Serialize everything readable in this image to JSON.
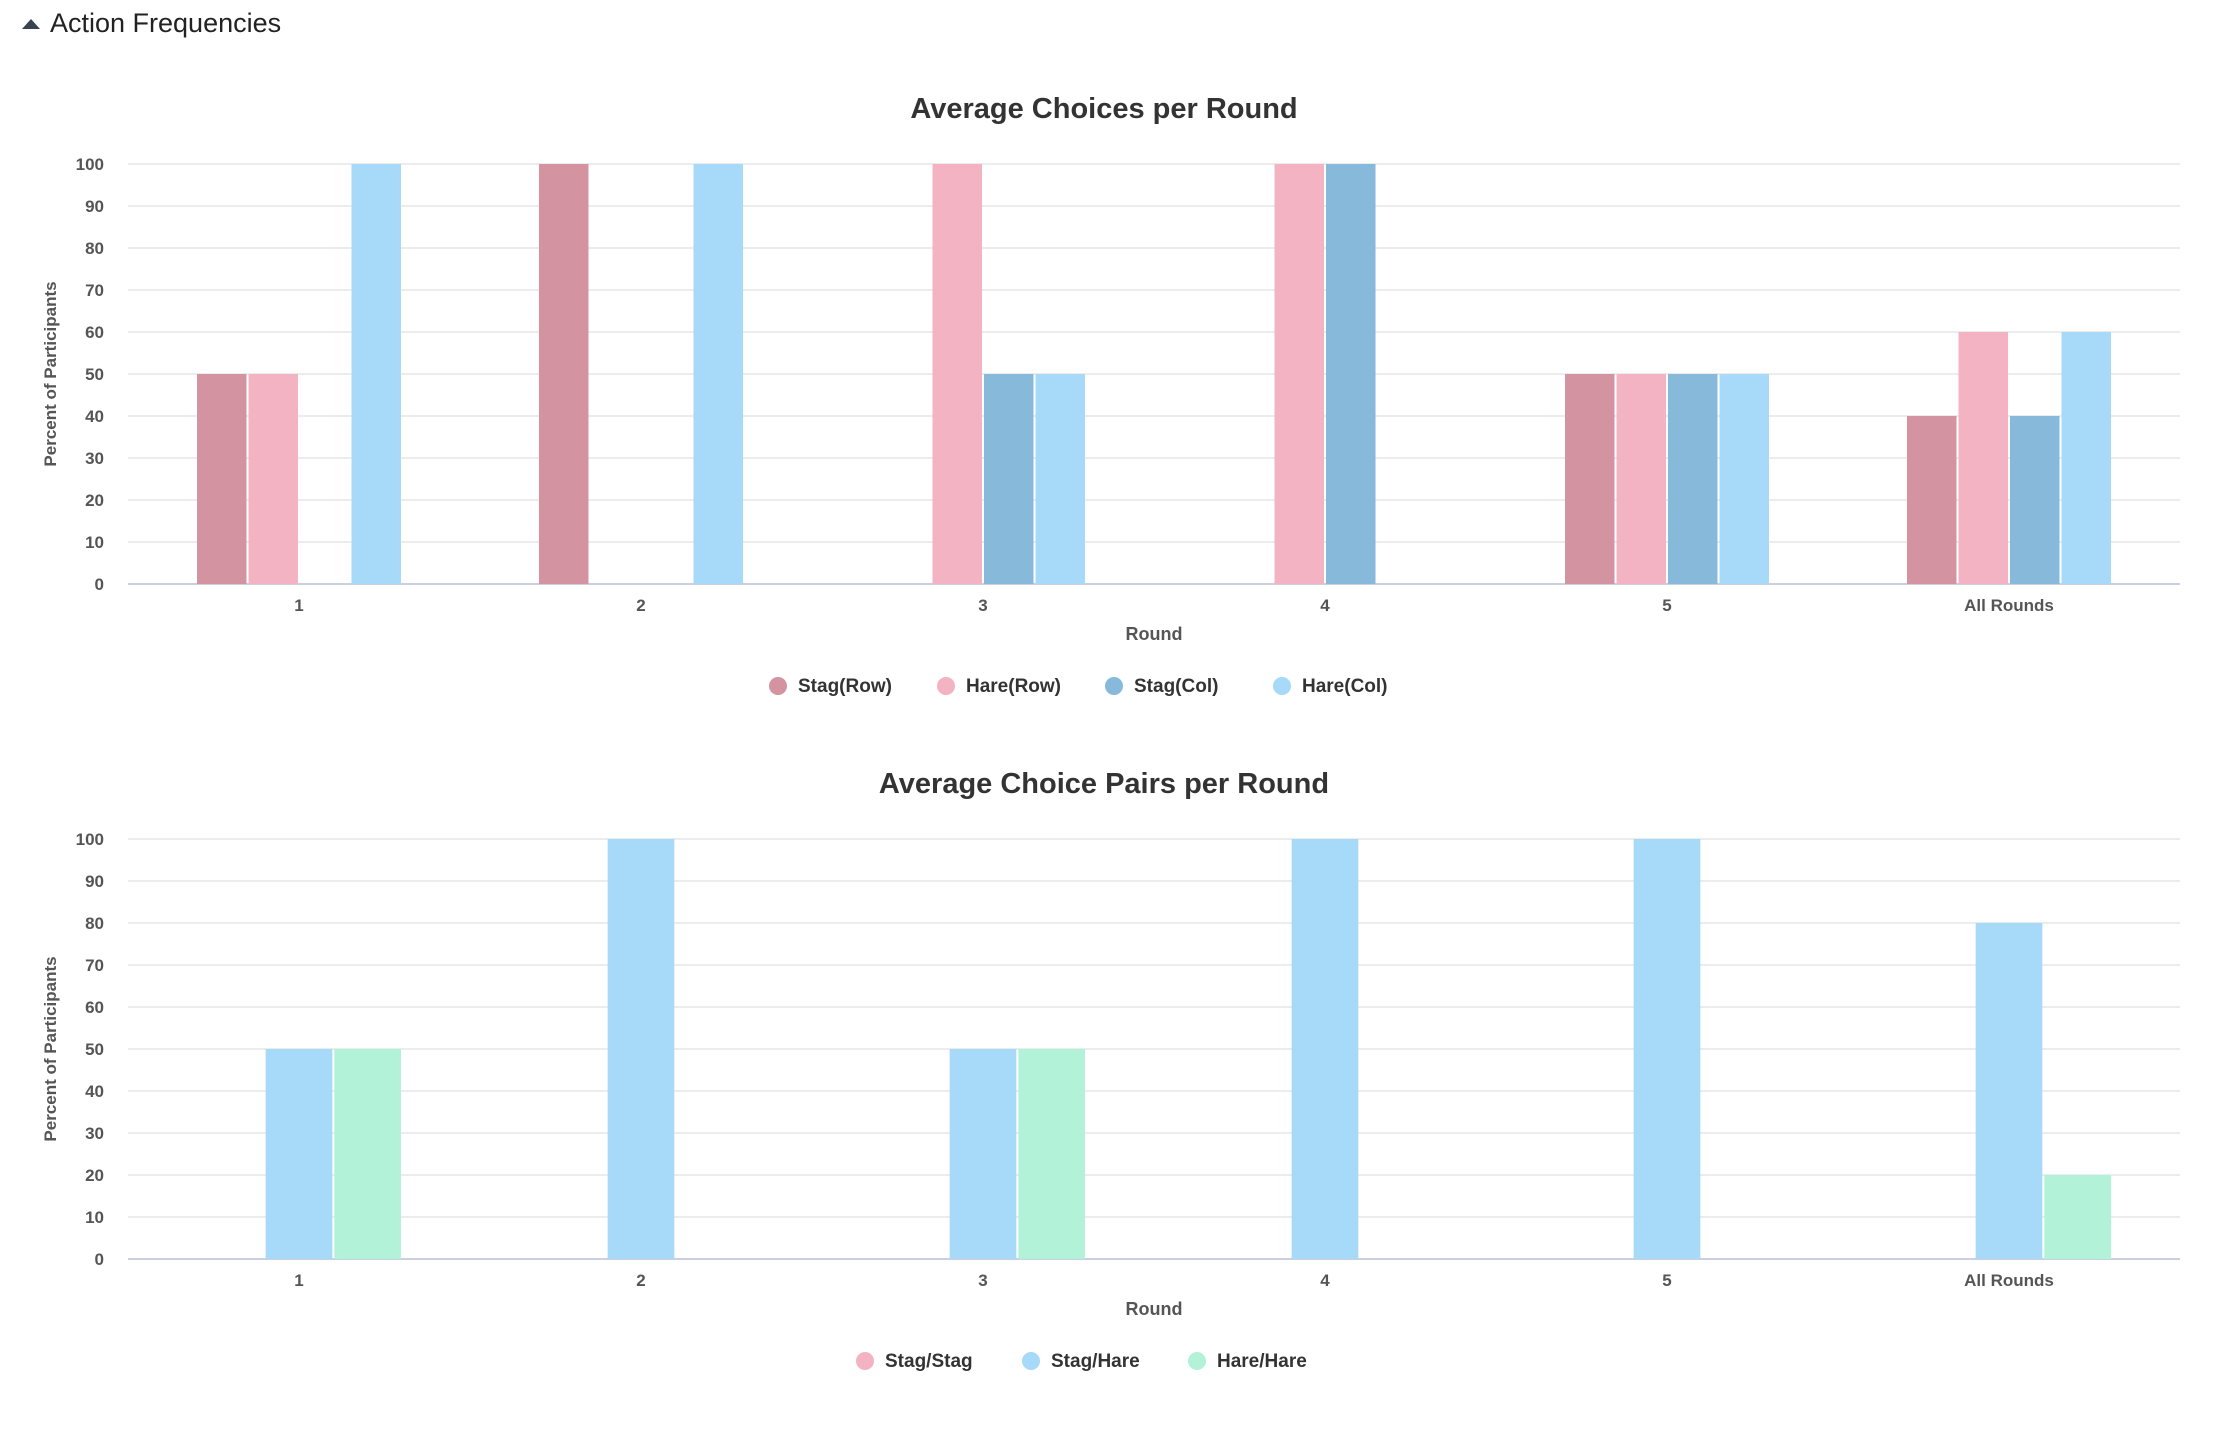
{
  "section": {
    "title": "Action Frequencies",
    "icon": "caret-up-icon"
  },
  "chart_data": [
    {
      "type": "bar",
      "title": "Average Choices per Round",
      "xlabel": "Round",
      "ylabel": "Percent of Participants",
      "ylim": [
        0,
        100
      ],
      "yticks": [
        0,
        10,
        20,
        30,
        40,
        50,
        60,
        70,
        80,
        90,
        100
      ],
      "grid": true,
      "legend": "bottom-center",
      "categories": [
        "1",
        "2",
        "3",
        "4",
        "5",
        "All Rounds"
      ],
      "series": [
        {
          "name": "Stag(Row)",
          "color": "#d493a1",
          "values": [
            50,
            100,
            0,
            0,
            50,
            40
          ]
        },
        {
          "name": "Hare(Row)",
          "color": "#f4b3c2",
          "values": [
            50,
            0,
            100,
            100,
            50,
            60
          ]
        },
        {
          "name": "Stag(Col)",
          "color": "#87b9da",
          "values": [
            0,
            0,
            50,
            100,
            50,
            40
          ]
        },
        {
          "name": "Hare(Col)",
          "color": "#a7d9f8",
          "values": [
            100,
            100,
            50,
            0,
            50,
            60
          ]
        }
      ]
    },
    {
      "type": "bar",
      "title": "Average Choice Pairs per Round",
      "xlabel": "Round",
      "ylabel": "Percent of Participants",
      "ylim": [
        0,
        100
      ],
      "yticks": [
        0,
        10,
        20,
        30,
        40,
        50,
        60,
        70,
        80,
        90,
        100
      ],
      "grid": true,
      "legend": "bottom-center",
      "categories": [
        "1",
        "2",
        "3",
        "4",
        "5",
        "All Rounds"
      ],
      "series": [
        {
          "name": "Stag/Stag",
          "color": "#f4b3c2",
          "values": [
            0,
            0,
            0,
            0,
            0,
            0
          ]
        },
        {
          "name": "Stag/Hare",
          "color": "#a7d9f8",
          "values": [
            50,
            100,
            50,
            100,
            100,
            80
          ]
        },
        {
          "name": "Hare/Hare",
          "color": "#b1f2d8",
          "values": [
            50,
            0,
            50,
            0,
            0,
            20
          ]
        }
      ]
    }
  ]
}
